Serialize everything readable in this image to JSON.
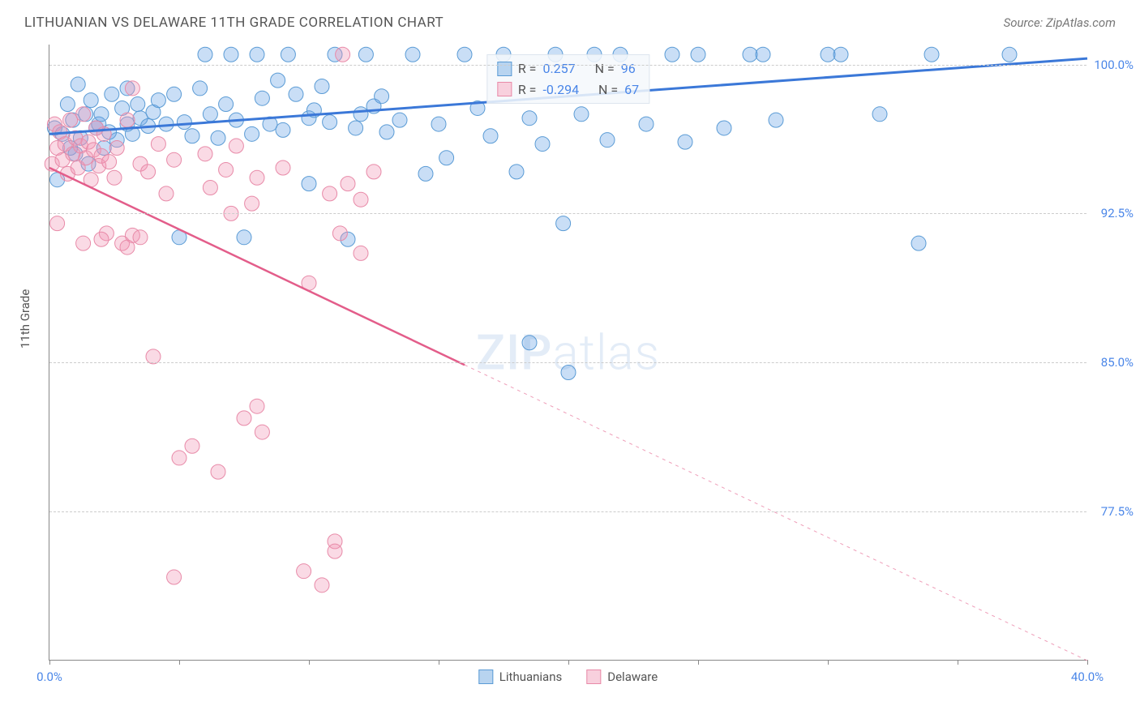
{
  "title": "LITHUANIAN VS DELAWARE 11TH GRADE CORRELATION CHART",
  "source": "Source: ZipAtlas.com",
  "ylabel": "11th Grade",
  "watermark_a": "ZIP",
  "watermark_b": "atlas",
  "chart": {
    "type": "scatter",
    "xlim": [
      0.0,
      40.0
    ],
    "ylim": [
      70.0,
      101.0
    ],
    "x_min_label": "0.0%",
    "x_max_label": "40.0%",
    "x_label_color": "#4a86e8",
    "xtick_positions": [
      0,
      5,
      10,
      15,
      20,
      25,
      30,
      35,
      40
    ],
    "y_ticks": [
      {
        "v": 77.5,
        "label": "77.5%"
      },
      {
        "v": 85.0,
        "label": "85.0%"
      },
      {
        "v": 92.5,
        "label": "92.5%"
      },
      {
        "v": 100.0,
        "label": "100.0%"
      }
    ],
    "y_label_color": "#4a86e8",
    "grid_color": "#cccccc",
    "series": [
      {
        "name": "Lithuanians",
        "color_fill": "rgba(100,160,230,0.35)",
        "color_stroke": "#5a9bd5",
        "swatch_fill": "#b8d4f0",
        "swatch_border": "#5a9bd5",
        "R": "0.257",
        "N": "96",
        "trend": {
          "x1": 0.0,
          "y1": 96.5,
          "x2": 40.0,
          "y2": 100.3,
          "stroke": "#3b78d8",
          "width": 3,
          "dash_after_x": null
        },
        "marker_r": 9,
        "points": [
          [
            0.2,
            96.8
          ],
          [
            0.3,
            94.2
          ],
          [
            0.5,
            96.5
          ],
          [
            0.7,
            98.0
          ],
          [
            0.8,
            95.8
          ],
          [
            0.9,
            97.2
          ],
          [
            1.0,
            95.5
          ],
          [
            1.1,
            99.0
          ],
          [
            1.2,
            96.3
          ],
          [
            1.4,
            97.5
          ],
          [
            1.5,
            95.0
          ],
          [
            1.6,
            98.2
          ],
          [
            1.8,
            96.8
          ],
          [
            1.9,
            97.0
          ],
          [
            2.0,
            97.5
          ],
          [
            2.1,
            95.8
          ],
          [
            2.3,
            96.6
          ],
          [
            2.4,
            98.5
          ],
          [
            2.6,
            96.2
          ],
          [
            2.8,
            97.8
          ],
          [
            3.0,
            97.0
          ],
          [
            3.2,
            96.5
          ],
          [
            3.4,
            98.0
          ],
          [
            3.0,
            98.8
          ],
          [
            3.5,
            97.3
          ],
          [
            3.8,
            96.9
          ],
          [
            4.0,
            97.6
          ],
          [
            4.2,
            98.2
          ],
          [
            4.5,
            97.0
          ],
          [
            4.8,
            98.5
          ],
          [
            5.0,
            91.3
          ],
          [
            5.2,
            97.1
          ],
          [
            5.5,
            96.4
          ],
          [
            5.8,
            98.8
          ],
          [
            6.0,
            100.5
          ],
          [
            6.2,
            97.5
          ],
          [
            6.5,
            96.3
          ],
          [
            6.8,
            98.0
          ],
          [
            7.0,
            100.5
          ],
          [
            7.2,
            97.2
          ],
          [
            7.5,
            91.3
          ],
          [
            7.8,
            96.5
          ],
          [
            8.0,
            100.5
          ],
          [
            8.2,
            98.3
          ],
          [
            8.5,
            97.0
          ],
          [
            8.8,
            99.2
          ],
          [
            9.0,
            96.7
          ],
          [
            9.2,
            100.5
          ],
          [
            9.5,
            98.5
          ],
          [
            10.0,
            97.3
          ],
          [
            10.2,
            97.7
          ],
          [
            10.5,
            98.9
          ],
          [
            10.8,
            97.1
          ],
          [
            11.0,
            100.5
          ],
          [
            10.0,
            94.0
          ],
          [
            11.5,
            91.2
          ],
          [
            11.8,
            96.8
          ],
          [
            12.0,
            97.5
          ],
          [
            12.2,
            100.5
          ],
          [
            12.5,
            97.9
          ],
          [
            12.8,
            98.4
          ],
          [
            13.0,
            96.6
          ],
          [
            13.5,
            97.2
          ],
          [
            14.0,
            100.5
          ],
          [
            14.5,
            94.5
          ],
          [
            15.0,
            97.0
          ],
          [
            15.3,
            95.3
          ],
          [
            16.0,
            100.5
          ],
          [
            16.5,
            97.8
          ],
          [
            17.0,
            96.4
          ],
          [
            17.5,
            100.5
          ],
          [
            18.0,
            94.6
          ],
          [
            18.5,
            97.3
          ],
          [
            18.5,
            86.0
          ],
          [
            19.0,
            96.0
          ],
          [
            19.5,
            100.5
          ],
          [
            20.0,
            84.5
          ],
          [
            20.5,
            97.5
          ],
          [
            21.0,
            100.5
          ],
          [
            21.5,
            96.2
          ],
          [
            22.0,
            100.5
          ],
          [
            23.0,
            97.0
          ],
          [
            24.0,
            100.5
          ],
          [
            24.5,
            96.1
          ],
          [
            25.0,
            100.5
          ],
          [
            26.0,
            96.8
          ],
          [
            27.0,
            100.5
          ],
          [
            27.5,
            100.5
          ],
          [
            28.0,
            97.2
          ],
          [
            30.0,
            100.5
          ],
          [
            30.5,
            100.5
          ],
          [
            32.0,
            97.5
          ],
          [
            33.5,
            91.0
          ],
          [
            34.0,
            100.5
          ],
          [
            37.0,
            100.5
          ],
          [
            19.8,
            92.0
          ]
        ]
      },
      {
        "name": "Delaware",
        "color_fill": "rgba(240,150,180,0.35)",
        "color_stroke": "#e88aa8",
        "swatch_fill": "#f8d0dd",
        "swatch_border": "#e88aa8",
        "R": "-0.294",
        "N": "67",
        "trend": {
          "x1": 0.0,
          "y1": 94.8,
          "x2": 40.0,
          "y2": 70.0,
          "stroke": "#e35d8a",
          "width": 2.5,
          "dash_after_x": 16.0
        },
        "marker_r": 9,
        "points": [
          [
            0.1,
            95.0
          ],
          [
            0.2,
            97.0
          ],
          [
            0.3,
            95.8
          ],
          [
            0.4,
            96.6
          ],
          [
            0.5,
            95.2
          ],
          [
            0.6,
            96.0
          ],
          [
            0.7,
            94.5
          ],
          [
            0.8,
            97.2
          ],
          [
            0.9,
            95.5
          ],
          [
            1.0,
            96.3
          ],
          [
            1.1,
            94.8
          ],
          [
            1.2,
            95.9
          ],
          [
            1.3,
            97.5
          ],
          [
            1.4,
            95.3
          ],
          [
            1.5,
            96.1
          ],
          [
            1.6,
            94.2
          ],
          [
            1.7,
            95.7
          ],
          [
            1.8,
            96.8
          ],
          [
            1.9,
            94.9
          ],
          [
            2.0,
            95.4
          ],
          [
            2.1,
            96.5
          ],
          [
            2.2,
            91.5
          ],
          [
            2.3,
            95.1
          ],
          [
            2.5,
            94.3
          ],
          [
            2.6,
            95.8
          ],
          [
            2.8,
            91.0
          ],
          [
            3.0,
            97.2
          ],
          [
            3.2,
            91.4
          ],
          [
            3.2,
            98.8
          ],
          [
            3.5,
            95.0
          ],
          [
            3.8,
            94.6
          ],
          [
            4.0,
            85.3
          ],
          [
            4.2,
            96.0
          ],
          [
            4.5,
            93.5
          ],
          [
            4.8,
            95.2
          ],
          [
            5.0,
            80.2
          ],
          [
            5.5,
            80.8
          ],
          [
            4.8,
            74.2
          ],
          [
            6.0,
            95.5
          ],
          [
            6.2,
            93.8
          ],
          [
            6.5,
            79.5
          ],
          [
            6.8,
            94.7
          ],
          [
            7.0,
            92.5
          ],
          [
            7.2,
            95.9
          ],
          [
            7.5,
            82.2
          ],
          [
            7.8,
            93.0
          ],
          [
            8.0,
            82.8
          ],
          [
            8.0,
            94.3
          ],
          [
            8.2,
            81.5
          ],
          [
            9.0,
            94.8
          ],
          [
            9.8,
            74.5
          ],
          [
            10.0,
            89.0
          ],
          [
            10.5,
            73.8
          ],
          [
            10.8,
            93.5
          ],
          [
            11.0,
            76.0
          ],
          [
            11.0,
            75.5
          ],
          [
            11.2,
            91.5
          ],
          [
            11.3,
            100.5
          ],
          [
            11.5,
            94.0
          ],
          [
            12.0,
            90.5
          ],
          [
            12.0,
            93.2
          ],
          [
            12.5,
            94.6
          ],
          [
            1.3,
            91.0
          ],
          [
            2.0,
            91.2
          ],
          [
            3.0,
            90.8
          ],
          [
            3.5,
            91.3
          ],
          [
            0.3,
            92.0
          ]
        ]
      }
    ]
  }
}
